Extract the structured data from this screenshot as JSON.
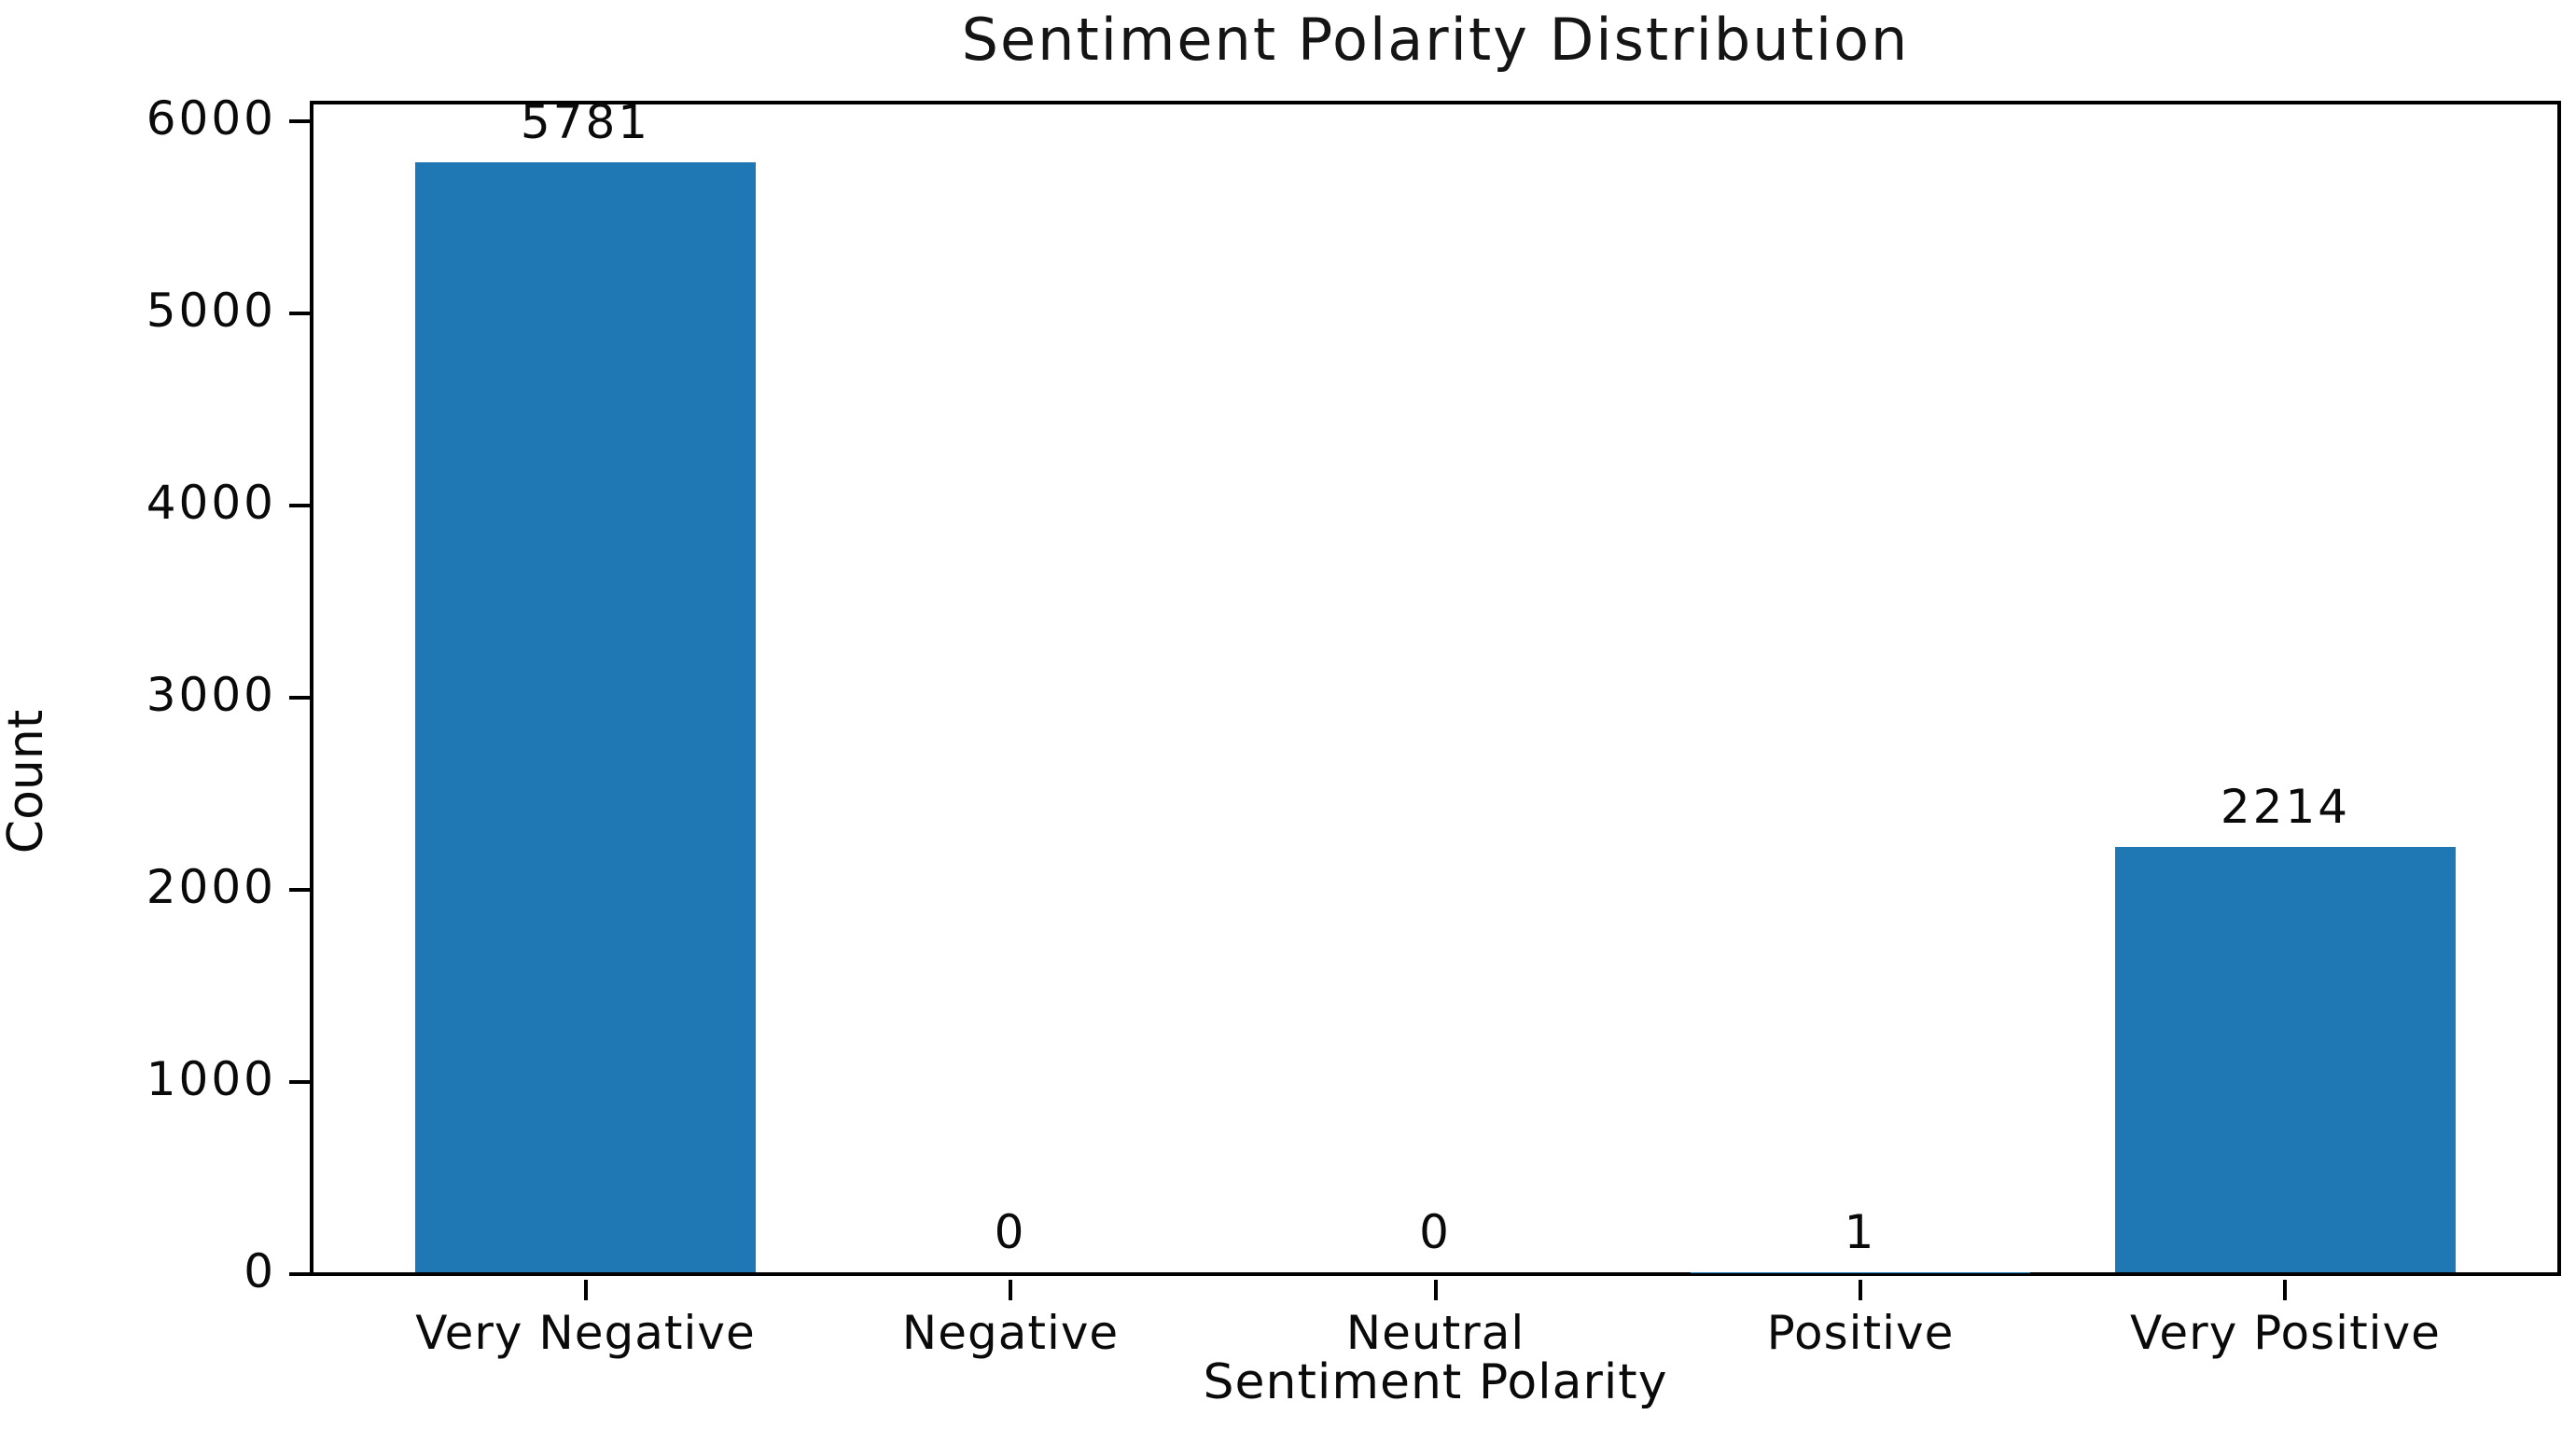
{
  "chart_data": {
    "type": "bar",
    "title": "Sentiment Polarity Distribution",
    "xlabel": "Sentiment Polarity",
    "ylabel": "Count",
    "categories": [
      "Very Negative",
      "Negative",
      "Neutral",
      "Positive",
      "Very Positive"
    ],
    "values": [
      5781,
      0,
      0,
      1,
      2214
    ],
    "bar_labels": [
      "5781",
      "0",
      "0",
      "1",
      "2214"
    ],
    "yticks": [
      0,
      1000,
      2000,
      3000,
      4000,
      5000,
      6000
    ],
    "ytick_labels": [
      "0",
      "1000",
      "2000",
      "3000",
      "4000",
      "5000",
      "6000"
    ],
    "ylim": [
      0,
      6080
    ],
    "bar_color": "#1f77b4",
    "text_color": "#0a0a0a",
    "grid": false,
    "legend_position": "none"
  }
}
